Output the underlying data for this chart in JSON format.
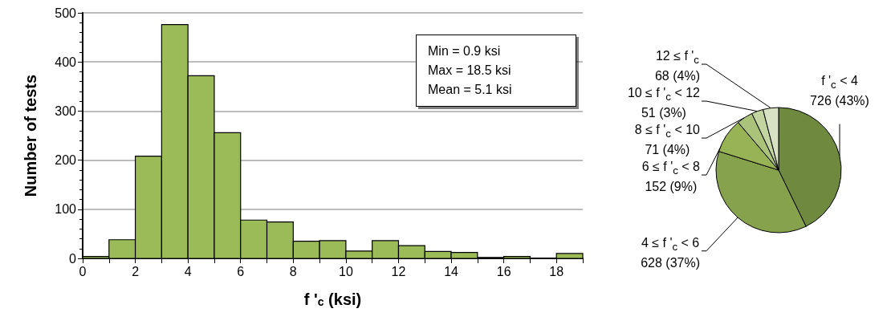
{
  "chart_data": [
    {
      "type": "histogram",
      "xlabel": "f '$_{c}$ (ksi)",
      "ylabel": "Number of tests",
      "color": "#9bbb59",
      "bins": [
        0,
        1,
        2,
        3,
        4,
        5,
        6,
        7,
        8,
        9,
        10,
        11,
        12,
        13,
        14,
        15,
        16,
        17,
        18,
        19
      ],
      "values": [
        4,
        38,
        208,
        476,
        372,
        256,
        78,
        74,
        35,
        36,
        15,
        36,
        26,
        14,
        12,
        2,
        4,
        0,
        10
      ],
      "xlim": [
        0,
        19
      ],
      "xticks": [
        0,
        {
          "value": 1,
          "label": null
        },
        2,
        {
          "value": 3,
          "label": null
        },
        4,
        {
          "value": 5,
          "label": null
        },
        6,
        {
          "value": 7,
          "label": null
        },
        8,
        {
          "value": 9,
          "label": null
        },
        10,
        {
          "value": 11,
          "label": null
        },
        12,
        {
          "value": 13,
          "label": null
        },
        14,
        {
          "value": 15,
          "label": null
        },
        16,
        {
          "value": 17,
          "label": null
        },
        18,
        {
          "value": 19,
          "label": null
        }
      ],
      "ylim": [
        0,
        500
      ],
      "yticks": [
        0,
        100,
        200,
        300,
        400,
        500
      ],
      "grid": "y",
      "legend": false,
      "annotations": [
        "Min = 0.9 ksi",
        "Max = 18.5 ksi",
        "Mean = 5.1 ksi"
      ]
    },
    {
      "type": "pie",
      "categories": [
        "f '$_{c}$ < 4",
        "4 ≤ f '$_{c}$ < 6",
        "6 ≤ f '$_{c}$ < 8",
        "8 ≤ f '$_{c}$ < 10",
        "10 ≤ f '$_{c}$ < 12",
        "12 ≤ f '$_{c}$"
      ],
      "values": [
        726,
        628,
        152,
        71,
        51,
        68
      ],
      "value_labels": [
        "726 (43%)",
        "628 (37%)",
        "152 (9%)",
        "71 (4%)",
        "51 (3%)",
        "68 (4%)"
      ],
      "colors": [
        "#6f8a3f",
        "#86a24c",
        "#98b356",
        "#aac27a",
        "#c2d4a0",
        "#d7e2c4"
      ],
      "legend": false
    }
  ]
}
